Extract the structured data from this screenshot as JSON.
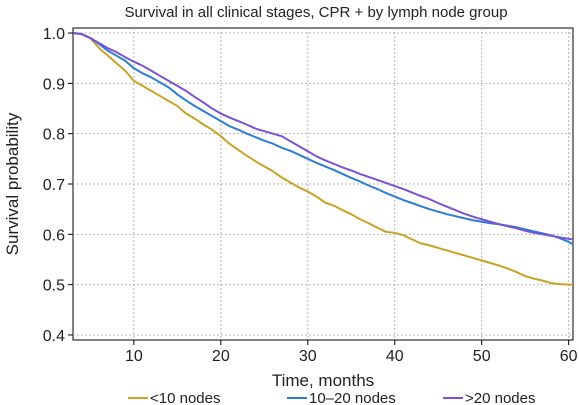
{
  "chart_data": {
    "type": "line",
    "title": "Survival in all clinical stages, CPR + by lymph node group",
    "xlabel": "Time, months",
    "ylabel": "Survival probability",
    "xlim": [
      3,
      60.5
    ],
    "ylim": [
      0.39,
      1.01
    ],
    "x_ticks": [
      10,
      20,
      30,
      40,
      50,
      60
    ],
    "y_ticks": [
      0.4,
      0.5,
      0.6,
      0.7,
      0.8,
      0.9,
      1.0
    ],
    "x_tick_labels": [
      "10",
      "20",
      "30",
      "40",
      "50",
      "60"
    ],
    "y_tick_labels": [
      "0.4",
      "0.5",
      "0.6",
      "0.7",
      "0.8",
      "0.9",
      "1.0"
    ],
    "grid": true,
    "legend_position": "bottom",
    "series": [
      {
        "name": "<10 nodes",
        "color": "#C9A227",
        "x": [
          3,
          4,
          5,
          6,
          7,
          8,
          9,
          10,
          11,
          12,
          13,
          14,
          15,
          16,
          17,
          18,
          19,
          20,
          21,
          22,
          23,
          24,
          25,
          26,
          27,
          28,
          29,
          30,
          31,
          32,
          33,
          34,
          35,
          36,
          37,
          38,
          39,
          40,
          41,
          42,
          43,
          44,
          45,
          46,
          47,
          48,
          49,
          50,
          51,
          52,
          53,
          54,
          55,
          56,
          57,
          58,
          59,
          60,
          60.5
        ],
        "y": [
          1.0,
          0.998,
          0.99,
          0.97,
          0.955,
          0.94,
          0.925,
          0.905,
          0.895,
          0.885,
          0.875,
          0.865,
          0.855,
          0.84,
          0.83,
          0.818,
          0.808,
          0.795,
          0.78,
          0.768,
          0.756,
          0.745,
          0.735,
          0.725,
          0.713,
          0.703,
          0.693,
          0.685,
          0.675,
          0.663,
          0.657,
          0.648,
          0.64,
          0.63,
          0.622,
          0.613,
          0.605,
          0.603,
          0.598,
          0.59,
          0.582,
          0.578,
          0.573,
          0.568,
          0.563,
          0.558,
          0.553,
          0.548,
          0.543,
          0.538,
          0.532,
          0.525,
          0.517,
          0.512,
          0.508,
          0.503,
          0.501,
          0.5,
          0.5
        ]
      },
      {
        "name": "10–20 nodes",
        "color": "#2E7DD1",
        "x": [
          3,
          4,
          5,
          6,
          7,
          8,
          9,
          10,
          11,
          12,
          13,
          14,
          15,
          16,
          17,
          18,
          19,
          20,
          21,
          22,
          23,
          24,
          25,
          26,
          27,
          28,
          29,
          30,
          31,
          32,
          33,
          34,
          35,
          36,
          37,
          38,
          39,
          40,
          41,
          42,
          43,
          44,
          45,
          46,
          47,
          48,
          49,
          50,
          51,
          52,
          53,
          54,
          55,
          56,
          57,
          58,
          59,
          60,
          60.5
        ],
        "y": [
          1.0,
          0.998,
          0.99,
          0.978,
          0.965,
          0.955,
          0.945,
          0.93,
          0.92,
          0.912,
          0.902,
          0.892,
          0.878,
          0.866,
          0.855,
          0.845,
          0.835,
          0.825,
          0.815,
          0.808,
          0.8,
          0.793,
          0.786,
          0.78,
          0.772,
          0.766,
          0.758,
          0.75,
          0.742,
          0.735,
          0.728,
          0.72,
          0.712,
          0.705,
          0.697,
          0.69,
          0.682,
          0.675,
          0.668,
          0.662,
          0.656,
          0.65,
          0.645,
          0.64,
          0.636,
          0.632,
          0.628,
          0.625,
          0.622,
          0.62,
          0.617,
          0.614,
          0.61,
          0.606,
          0.602,
          0.598,
          0.592,
          0.585,
          0.58
        ]
      },
      {
        "name": ">20 nodes",
        "color": "#7B52D4",
        "x": [
          3,
          4,
          5,
          6,
          7,
          8,
          9,
          10,
          11,
          12,
          13,
          14,
          15,
          16,
          17,
          18,
          19,
          20,
          21,
          22,
          23,
          24,
          25,
          26,
          27,
          28,
          29,
          30,
          31,
          32,
          33,
          34,
          35,
          36,
          37,
          38,
          39,
          40,
          41,
          42,
          43,
          44,
          45,
          46,
          47,
          48,
          49,
          50,
          51,
          52,
          53,
          54,
          55,
          56,
          57,
          58,
          59,
          60,
          60.5
        ],
        "y": [
          1.0,
          0.998,
          0.99,
          0.98,
          0.97,
          0.962,
          0.952,
          0.943,
          0.935,
          0.925,
          0.915,
          0.905,
          0.895,
          0.885,
          0.873,
          0.862,
          0.85,
          0.84,
          0.832,
          0.825,
          0.818,
          0.81,
          0.805,
          0.8,
          0.795,
          0.785,
          0.775,
          0.765,
          0.755,
          0.747,
          0.74,
          0.733,
          0.727,
          0.72,
          0.714,
          0.708,
          0.702,
          0.696,
          0.69,
          0.683,
          0.676,
          0.67,
          0.662,
          0.655,
          0.648,
          0.641,
          0.635,
          0.63,
          0.625,
          0.62,
          0.616,
          0.612,
          0.607,
          0.603,
          0.6,
          0.597,
          0.594,
          0.591,
          0.59
        ]
      }
    ]
  }
}
